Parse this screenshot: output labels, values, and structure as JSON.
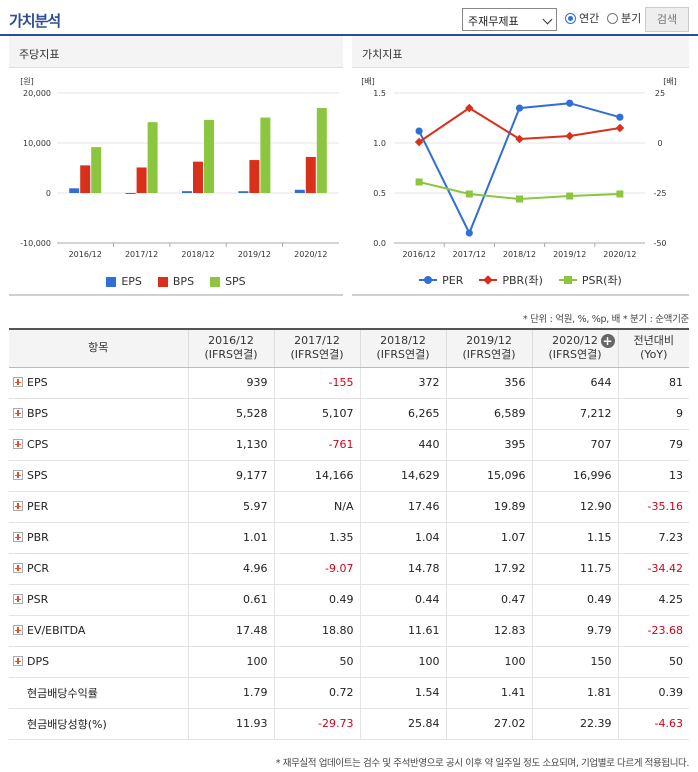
{
  "header": {
    "title": "가치분석",
    "select_value": "주재무제표",
    "radio_annual": "연간",
    "radio_quarter": "분기",
    "search_label": "검색"
  },
  "left_chart": {
    "panel_title": "주당지표",
    "chart_data": {
      "type": "bar",
      "categories": [
        "2016/12",
        "2017/12",
        "2018/12",
        "2019/12",
        "2020/12"
      ],
      "ylabel": "[원]",
      "ylim": [
        -10000,
        20000
      ],
      "yticks": [
        "20,000",
        "10,000",
        "0",
        "-10,000"
      ],
      "series": [
        {
          "name": "EPS",
          "color": "#2f6fd6",
          "values": [
            939,
            -155,
            372,
            356,
            644
          ]
        },
        {
          "name": "BPS",
          "color": "#d8301a",
          "values": [
            5528,
            5107,
            6265,
            6589,
            7212
          ]
        },
        {
          "name": "SPS",
          "color": "#8cc63f",
          "values": [
            9177,
            14166,
            14629,
            15096,
            16996
          ]
        }
      ]
    }
  },
  "right_chart": {
    "panel_title": "가치지표",
    "chart_data": {
      "type": "line",
      "categories": [
        "2016/12",
        "2017/12",
        "2018/12",
        "2019/12",
        "2020/12"
      ],
      "ylabel_left": "[배]",
      "ylabel_right": "[배]",
      "ylim_left": [
        0,
        1.5
      ],
      "ylim_right": [
        -50,
        25
      ],
      "yticks_left": [
        "1.5",
        "1.0",
        "0.5",
        "0.0"
      ],
      "yticks_right": [
        "25",
        "0",
        "-25",
        "-50"
      ],
      "series": [
        {
          "name": "PER",
          "axis": "right",
          "marker": "circle",
          "color": "#2f6fd6",
          "values": [
            5.97,
            -45,
            17.46,
            19.89,
            12.9
          ]
        },
        {
          "name": "PBR(좌)",
          "axis": "left",
          "marker": "diamond",
          "color": "#d8301a",
          "values": [
            1.01,
            1.35,
            1.04,
            1.07,
            1.15
          ]
        },
        {
          "name": "PSR(좌)",
          "axis": "left",
          "marker": "square",
          "color": "#8cc63f",
          "values": [
            0.61,
            0.49,
            0.44,
            0.47,
            0.49
          ]
        }
      ]
    }
  },
  "units_note": "* 단위 : 억원, %, %p, 배    * 분기 : 순액기준",
  "table": {
    "header_item": "항목",
    "columns": [
      {
        "l1": "2016/12",
        "l2": "(IFRS연결)"
      },
      {
        "l1": "2017/12",
        "l2": "(IFRS연결)"
      },
      {
        "l1": "2018/12",
        "l2": "(IFRS연결)"
      },
      {
        "l1": "2019/12",
        "l2": "(IFRS연결)"
      },
      {
        "l1": "2020/12",
        "l2": "(IFRS연결)"
      },
      {
        "l1": "전년대비",
        "l2": "(YoY)"
      }
    ],
    "rows": [
      {
        "label": "EPS",
        "expand": true,
        "values": [
          "939",
          "-155",
          "372",
          "356",
          "644",
          "81"
        ]
      },
      {
        "label": "BPS",
        "expand": true,
        "values": [
          "5,528",
          "5,107",
          "6,265",
          "6,589",
          "7,212",
          "9"
        ]
      },
      {
        "label": "CPS",
        "expand": true,
        "values": [
          "1,130",
          "-761",
          "440",
          "395",
          "707",
          "79"
        ]
      },
      {
        "label": "SPS",
        "expand": true,
        "values": [
          "9,177",
          "14,166",
          "14,629",
          "15,096",
          "16,996",
          "13"
        ]
      },
      {
        "label": "PER",
        "expand": true,
        "values": [
          "5.97",
          "N/A",
          "17.46",
          "19.89",
          "12.90",
          "-35.16"
        ]
      },
      {
        "label": "PBR",
        "expand": true,
        "values": [
          "1.01",
          "1.35",
          "1.04",
          "1.07",
          "1.15",
          "7.23"
        ]
      },
      {
        "label": "PCR",
        "expand": true,
        "values": [
          "4.96",
          "-9.07",
          "14.78",
          "17.92",
          "11.75",
          "-34.42"
        ]
      },
      {
        "label": "PSR",
        "expand": true,
        "values": [
          "0.61",
          "0.49",
          "0.44",
          "0.47",
          "0.49",
          "4.25"
        ]
      },
      {
        "label": "EV/EBITDA",
        "expand": true,
        "values": [
          "17.48",
          "18.80",
          "11.61",
          "12.83",
          "9.79",
          "-23.68"
        ]
      },
      {
        "label": "DPS",
        "expand": true,
        "values": [
          "100",
          "50",
          "100",
          "100",
          "150",
          "50"
        ]
      },
      {
        "label": "현금배당수익률",
        "expand": false,
        "values": [
          "1.79",
          "0.72",
          "1.54",
          "1.41",
          "1.81",
          "0.39"
        ]
      },
      {
        "label": "현금배당성향(%)",
        "expand": false,
        "values": [
          "11.93",
          "-29.73",
          "25.84",
          "27.02",
          "22.39",
          "-4.63"
        ]
      }
    ]
  },
  "footnote": "* 재무실적 업데이트는 검수 및 주석반영으로 공시 이후 약 일주일 정도 소요되며, 기업별로 다르게 적용됩니다."
}
